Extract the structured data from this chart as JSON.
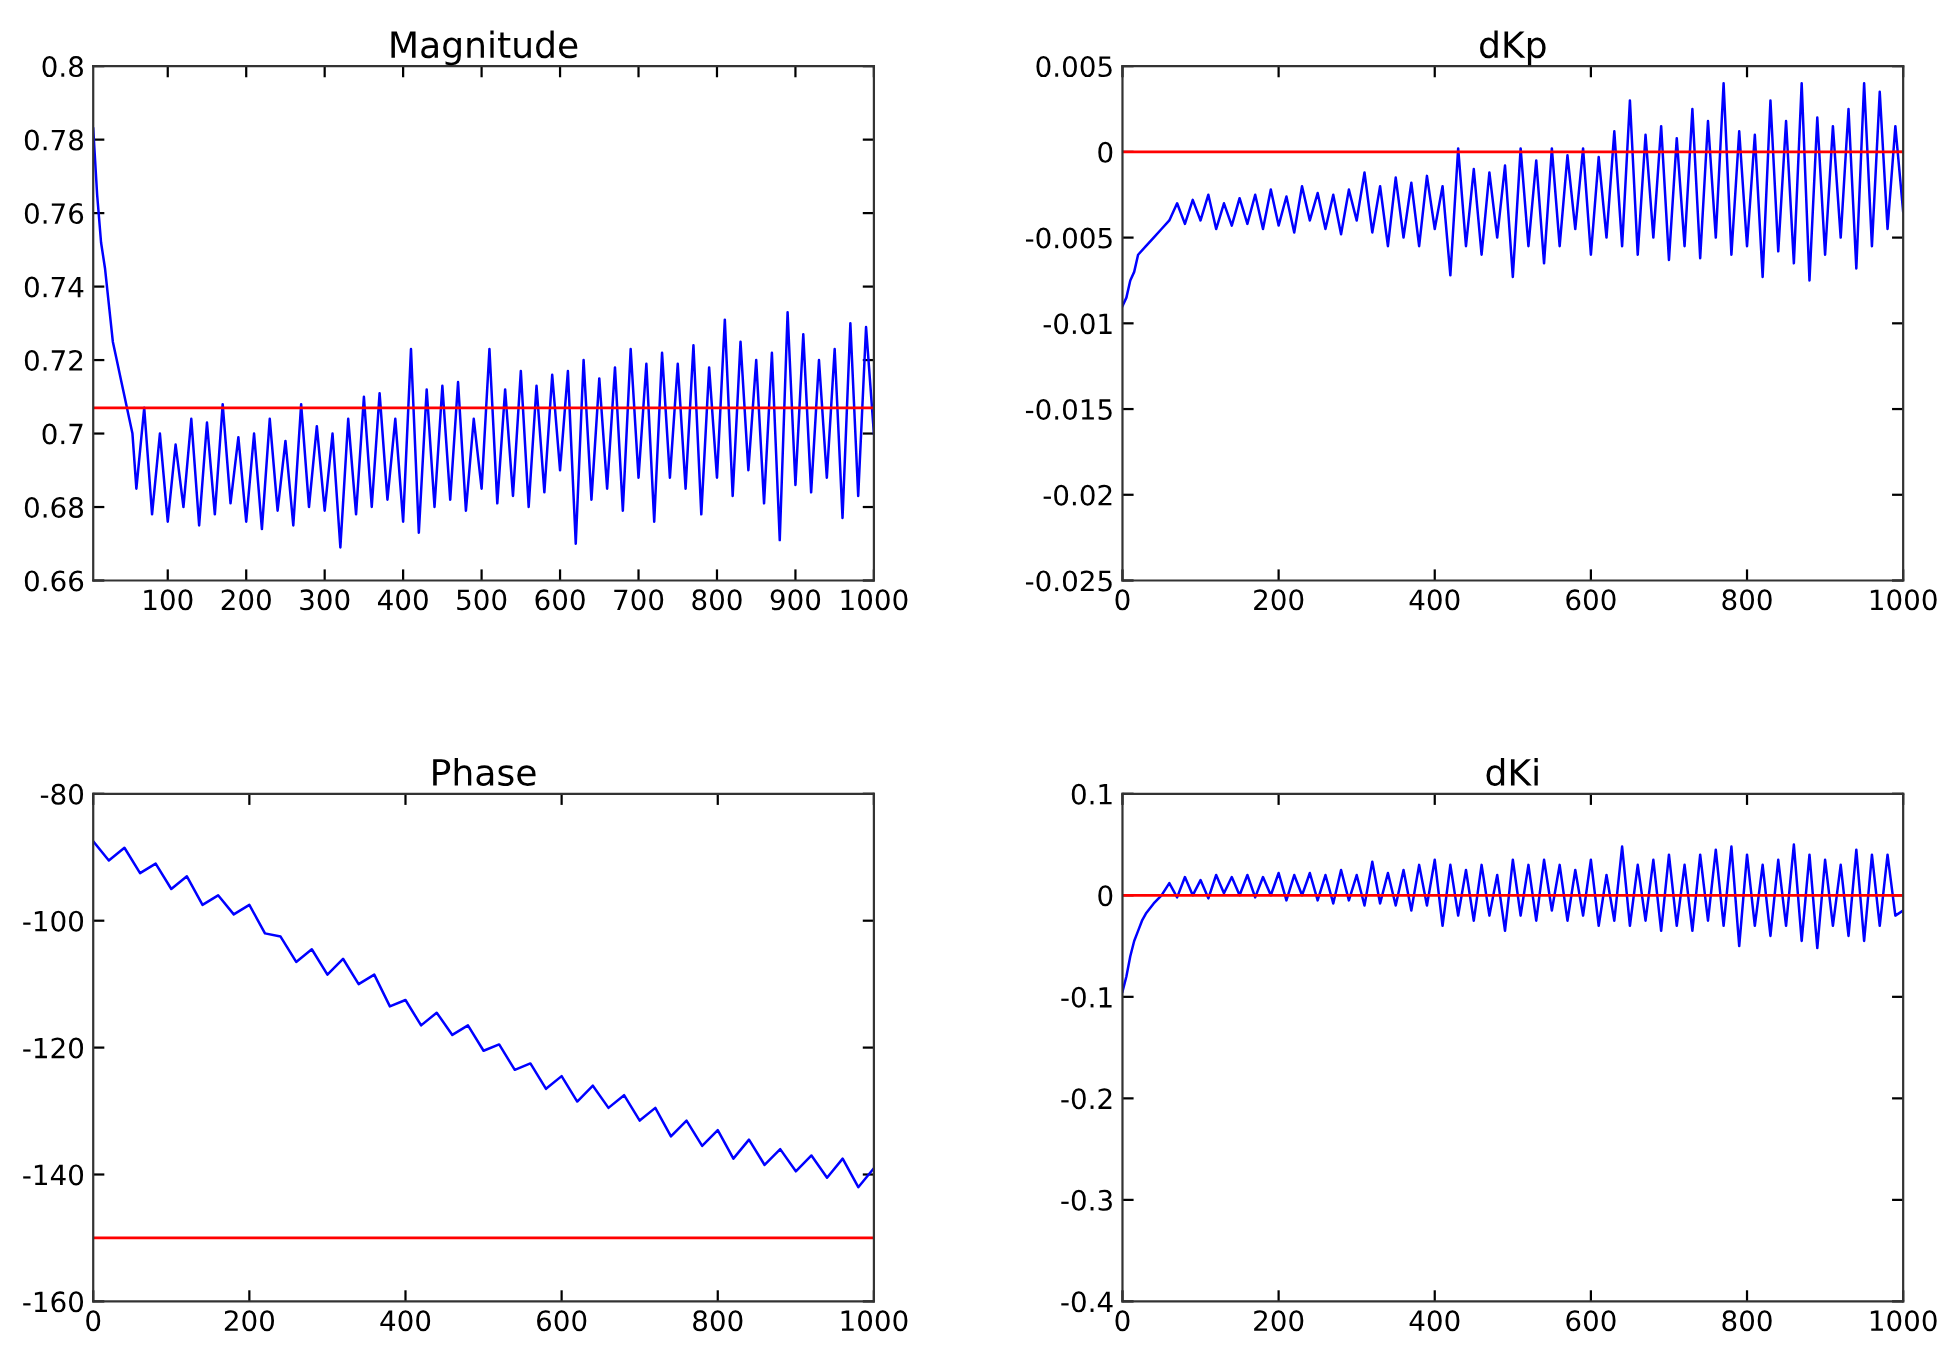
{
  "chart_data": [
    {
      "type": "line",
      "title": "Magnitude",
      "xlim": [
        5,
        1000
      ],
      "xticks": [
        100,
        200,
        300,
        400,
        500,
        600,
        700,
        800,
        900,
        1000
      ],
      "ylim": [
        0.66,
        0.8
      ],
      "yticks": [
        0.66,
        0.68,
        0.7,
        0.72,
        0.74,
        0.76,
        0.78,
        0.8
      ],
      "ref_lines": [
        {
          "axis": "y",
          "value": 0.707,
          "color": "#ff0000"
        }
      ],
      "series": [
        {
          "color": "#0000ff",
          "x": [
            5,
            10,
            15,
            20,
            25,
            30,
            35,
            40,
            45,
            50,
            55,
            60,
            70,
            80,
            90,
            100,
            110,
            120,
            130,
            140,
            150,
            160,
            170,
            180,
            190,
            200,
            210,
            220,
            230,
            240,
            250,
            260,
            270,
            280,
            290,
            300,
            310,
            320,
            330,
            340,
            350,
            360,
            370,
            380,
            390,
            400,
            410,
            420,
            430,
            440,
            450,
            460,
            470,
            480,
            490,
            500,
            510,
            520,
            530,
            540,
            550,
            560,
            570,
            580,
            590,
            600,
            610,
            620,
            630,
            640,
            650,
            660,
            670,
            680,
            690,
            700,
            710,
            720,
            730,
            740,
            750,
            760,
            770,
            780,
            790,
            800,
            810,
            820,
            830,
            840,
            850,
            860,
            870,
            880,
            890,
            900,
            910,
            920,
            930,
            940,
            950,
            960,
            970,
            980,
            990,
            1000
          ],
          "values": [
            0.783,
            0.765,
            0.752,
            0.745,
            0.735,
            0.725,
            0.72,
            0.715,
            0.71,
            0.705,
            0.7,
            0.685,
            0.707,
            0.678,
            0.7,
            0.676,
            0.697,
            0.68,
            0.704,
            0.675,
            0.703,
            0.678,
            0.708,
            0.681,
            0.699,
            0.676,
            0.7,
            0.674,
            0.704,
            0.679,
            0.698,
            0.675,
            0.708,
            0.68,
            0.702,
            0.679,
            0.7,
            0.669,
            0.704,
            0.678,
            0.71,
            0.68,
            0.711,
            0.682,
            0.704,
            0.676,
            0.723,
            0.673,
            0.712,
            0.68,
            0.713,
            0.682,
            0.714,
            0.679,
            0.704,
            0.685,
            0.723,
            0.681,
            0.712,
            0.683,
            0.717,
            0.68,
            0.713,
            0.684,
            0.716,
            0.69,
            0.717,
            0.67,
            0.72,
            0.682,
            0.715,
            0.685,
            0.718,
            0.679,
            0.723,
            0.688,
            0.719,
            0.676,
            0.722,
            0.688,
            0.719,
            0.685,
            0.724,
            0.678,
            0.718,
            0.688,
            0.731,
            0.683,
            0.725,
            0.69,
            0.72,
            0.681,
            0.722,
            0.671,
            0.733,
            0.686,
            0.727,
            0.684,
            0.72,
            0.688,
            0.723,
            0.677,
            0.73,
            0.683,
            0.729,
            0.7
          ]
        }
      ]
    },
    {
      "type": "line",
      "title": "dKp",
      "xlim": [
        0,
        1000
      ],
      "xticks": [
        0,
        200,
        400,
        600,
        800,
        1000
      ],
      "ylim": [
        -0.025,
        0.005
      ],
      "yticks": [
        -0.025,
        -0.02,
        -0.015,
        -0.01,
        -0.005,
        0,
        0.005
      ],
      "ref_lines": [
        {
          "axis": "y",
          "value": 0,
          "color": "#ff0000"
        }
      ],
      "series": [
        {
          "color": "#0000ff",
          "x": [
            0,
            5,
            10,
            15,
            20,
            30,
            40,
            50,
            60,
            70,
            80,
            90,
            100,
            110,
            120,
            130,
            140,
            150,
            160,
            170,
            180,
            190,
            200,
            210,
            220,
            230,
            240,
            250,
            260,
            270,
            280,
            290,
            300,
            310,
            320,
            330,
            340,
            350,
            360,
            370,
            380,
            390,
            400,
            410,
            420,
            430,
            440,
            450,
            460,
            470,
            480,
            490,
            500,
            510,
            520,
            530,
            540,
            550,
            560,
            570,
            580,
            590,
            600,
            610,
            620,
            630,
            640,
            650,
            660,
            670,
            680,
            690,
            700,
            710,
            720,
            730,
            740,
            750,
            760,
            770,
            780,
            790,
            800,
            810,
            820,
            830,
            840,
            850,
            860,
            870,
            880,
            890,
            900,
            910,
            920,
            930,
            940,
            950,
            960,
            970,
            980,
            990,
            1000
          ],
          "values": [
            -0.009,
            -0.0085,
            -0.0075,
            -0.007,
            -0.006,
            -0.0055,
            -0.005,
            -0.0045,
            -0.004,
            -0.003,
            -0.0042,
            -0.0028,
            -0.004,
            -0.0025,
            -0.0045,
            -0.003,
            -0.0043,
            -0.0027,
            -0.0042,
            -0.0025,
            -0.0045,
            -0.0022,
            -0.0043,
            -0.0026,
            -0.0047,
            -0.002,
            -0.004,
            -0.0024,
            -0.0045,
            -0.0025,
            -0.0048,
            -0.0022,
            -0.004,
            -0.0012,
            -0.0047,
            -0.002,
            -0.0055,
            -0.0015,
            -0.005,
            -0.0018,
            -0.0055,
            -0.0014,
            -0.0045,
            -0.002,
            -0.0072,
            0.0002,
            -0.0055,
            -0.001,
            -0.006,
            -0.0012,
            -0.005,
            -0.0008,
            -0.0073,
            0.0002,
            -0.0055,
            -0.0005,
            -0.0065,
            0.0002,
            -0.0055,
            -0.0002,
            -0.0045,
            0.0002,
            -0.006,
            -0.0003,
            -0.005,
            0.0012,
            -0.0055,
            0.003,
            -0.006,
            0.001,
            -0.005,
            0.0015,
            -0.0063,
            0.0008,
            -0.0055,
            0.0025,
            -0.0062,
            0.0018,
            -0.005,
            0.004,
            -0.006,
            0.0012,
            -0.0055,
            0.001,
            -0.0073,
            0.003,
            -0.0058,
            0.0018,
            -0.0065,
            0.004,
            -0.0075,
            0.002,
            -0.006,
            0.0015,
            -0.005,
            0.0025,
            -0.0068,
            0.004,
            -0.0055,
            0.0035,
            -0.0045,
            0.0015,
            -0.0035
          ]
        }
      ]
    },
    {
      "type": "line",
      "title": "Phase",
      "xlim": [
        0,
        1000
      ],
      "xticks": [
        0,
        200,
        400,
        600,
        800,
        1000
      ],
      "ylim": [
        -160,
        -80
      ],
      "yticks": [
        -160,
        -140,
        -120,
        -100,
        -80
      ],
      "ref_lines": [
        {
          "axis": "y",
          "value": -150,
          "color": "#ff0000"
        }
      ],
      "series": [
        {
          "color": "#0000ff",
          "x": [
            0,
            20,
            40,
            60,
            80,
            100,
            120,
            140,
            160,
            180,
            200,
            220,
            240,
            260,
            280,
            300,
            320,
            340,
            360,
            380,
            400,
            420,
            440,
            460,
            480,
            500,
            520,
            540,
            560,
            580,
            600,
            620,
            640,
            660,
            680,
            700,
            720,
            740,
            760,
            780,
            800,
            820,
            840,
            860,
            880,
            900,
            920,
            940,
            960,
            980,
            1000
          ],
          "values": [
            -87.5,
            -90.5,
            -88.5,
            -92.5,
            -91,
            -95,
            -93,
            -97.5,
            -96,
            -99,
            -97.5,
            -102,
            -102.5,
            -106.5,
            -104.5,
            -108.5,
            -106,
            -110,
            -108.5,
            -113.5,
            -112.5,
            -116.5,
            -114.5,
            -118,
            -116.5,
            -120.5,
            -119.5,
            -123.5,
            -122.5,
            -126.5,
            -124.5,
            -128.5,
            -126,
            -129.5,
            -127.5,
            -131.5,
            -129.5,
            -134,
            -131.5,
            -135.5,
            -133,
            -137.5,
            -134.5,
            -138.5,
            -136,
            -139.5,
            -137,
            -140.5,
            -137.5,
            -142,
            -139
          ]
        }
      ]
    },
    {
      "type": "line",
      "title": "dKi",
      "xlim": [
        0,
        1000
      ],
      "xticks": [
        0,
        200,
        400,
        600,
        800,
        1000
      ],
      "ylim": [
        -0.4,
        0.1
      ],
      "yticks": [
        -0.4,
        -0.3,
        -0.2,
        -0.1,
        0,
        0.1
      ],
      "ref_lines": [
        {
          "axis": "y",
          "value": 0,
          "color": "#ff0000"
        }
      ],
      "series": [
        {
          "color": "#0000ff",
          "x": [
            0,
            5,
            10,
            15,
            20,
            25,
            30,
            40,
            50,
            60,
            70,
            80,
            90,
            100,
            110,
            120,
            130,
            140,
            150,
            160,
            170,
            180,
            190,
            200,
            210,
            220,
            230,
            240,
            250,
            260,
            270,
            280,
            290,
            300,
            310,
            320,
            330,
            340,
            350,
            360,
            370,
            380,
            390,
            400,
            410,
            420,
            430,
            440,
            450,
            460,
            470,
            480,
            490,
            500,
            510,
            520,
            530,
            540,
            550,
            560,
            570,
            580,
            590,
            600,
            610,
            620,
            630,
            640,
            650,
            660,
            670,
            680,
            690,
            700,
            710,
            720,
            730,
            740,
            750,
            760,
            770,
            780,
            790,
            800,
            810,
            820,
            830,
            840,
            850,
            860,
            870,
            880,
            890,
            900,
            910,
            920,
            930,
            940,
            950,
            960,
            970,
            980,
            990,
            1000
          ],
          "values": [
            -0.095,
            -0.08,
            -0.06,
            -0.045,
            -0.035,
            -0.025,
            -0.018,
            -0.008,
            0.0,
            0.012,
            -0.002,
            0.018,
            0.0,
            0.015,
            -0.003,
            0.02,
            0.002,
            0.018,
            0.0,
            0.02,
            -0.002,
            0.018,
            0.0,
            0.022,
            -0.005,
            0.02,
            0.0,
            0.022,
            -0.005,
            0.02,
            -0.008,
            0.025,
            -0.005,
            0.02,
            -0.01,
            0.033,
            -0.008,
            0.022,
            -0.01,
            0.025,
            -0.015,
            0.03,
            -0.01,
            0.035,
            -0.03,
            0.03,
            -0.02,
            0.025,
            -0.025,
            0.03,
            -0.02,
            0.02,
            -0.035,
            0.035,
            -0.02,
            0.03,
            -0.025,
            0.035,
            -0.015,
            0.03,
            -0.025,
            0.025,
            -0.02,
            0.035,
            -0.03,
            0.02,
            -0.025,
            0.048,
            -0.03,
            0.03,
            -0.025,
            0.035,
            -0.035,
            0.04,
            -0.03,
            0.03,
            -0.035,
            0.04,
            -0.025,
            0.045,
            -0.03,
            0.048,
            -0.05,
            0.04,
            -0.03,
            0.03,
            -0.04,
            0.035,
            -0.03,
            0.05,
            -0.045,
            0.04,
            -0.052,
            0.035,
            -0.03,
            0.03,
            -0.04,
            0.045,
            -0.045,
            0.04,
            -0.03,
            0.04,
            -0.02,
            -0.015
          ]
        }
      ]
    }
  ]
}
